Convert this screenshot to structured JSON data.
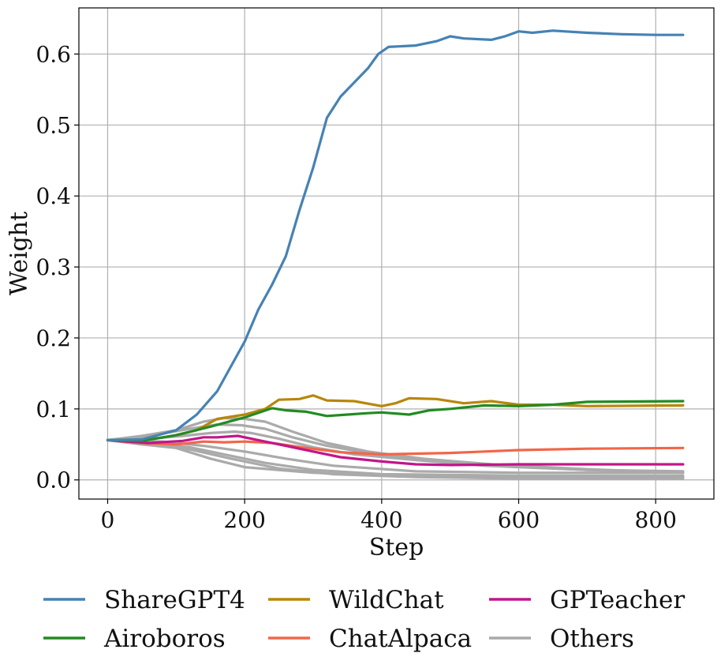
{
  "chart_data": {
    "type": "line",
    "xlabel": "Step",
    "ylabel": "Weight",
    "xlim": [
      -42,
      885
    ],
    "ylim": [
      -0.027,
      0.665
    ],
    "xticks": [
      0,
      200,
      400,
      600,
      800
    ],
    "yticks": [
      0.0,
      0.1,
      0.2,
      0.3,
      0.4,
      0.5,
      0.6
    ],
    "ytick_labels": [
      "0.0",
      "0.1",
      "0.2",
      "0.3",
      "0.4",
      "0.5",
      "0.6"
    ],
    "grid": true,
    "legend_position": "bottom",
    "series": [
      {
        "name": "Others",
        "color": "#aaaaaa",
        "points": [
          [
            0,
            0.056
          ],
          [
            50,
            0.05
          ],
          [
            100,
            0.045
          ],
          [
            150,
            0.03
          ],
          [
            200,
            0.018
          ],
          [
            300,
            0.01
          ],
          [
            400,
            0.006
          ],
          [
            600,
            0.004
          ],
          [
            840,
            0.004
          ]
        ]
      },
      {
        "name": "",
        "color": "#aaaaaa",
        "points": [
          [
            0,
            0.056
          ],
          [
            60,
            0.052
          ],
          [
            120,
            0.046
          ],
          [
            170,
            0.036
          ],
          [
            230,
            0.024
          ],
          [
            300,
            0.014
          ],
          [
            400,
            0.008
          ],
          [
            600,
            0.006
          ],
          [
            840,
            0.006
          ]
        ]
      },
      {
        "name": "",
        "color": "#aaaaaa",
        "points": [
          [
            0,
            0.056
          ],
          [
            80,
            0.054
          ],
          [
            140,
            0.048
          ],
          [
            200,
            0.04
          ],
          [
            260,
            0.03
          ],
          [
            330,
            0.02
          ],
          [
            450,
            0.012
          ],
          [
            600,
            0.01
          ],
          [
            840,
            0.01
          ]
        ]
      },
      {
        "name": "",
        "color": "#aaaaaa",
        "points": [
          [
            0,
            0.056
          ],
          [
            60,
            0.058
          ],
          [
            110,
            0.062
          ],
          [
            150,
            0.066
          ],
          [
            185,
            0.068
          ],
          [
            210,
            0.066
          ],
          [
            250,
            0.058
          ],
          [
            300,
            0.046
          ],
          [
            360,
            0.036
          ],
          [
            450,
            0.028
          ],
          [
            550,
            0.02
          ],
          [
            700,
            0.014
          ],
          [
            840,
            0.012
          ]
        ]
      },
      {
        "name": "",
        "color": "#aaaaaa",
        "points": [
          [
            0,
            0.056
          ],
          [
            60,
            0.062
          ],
          [
            120,
            0.072
          ],
          [
            160,
            0.078
          ],
          [
            195,
            0.077
          ],
          [
            230,
            0.072
          ],
          [
            270,
            0.06
          ],
          [
            320,
            0.048
          ],
          [
            380,
            0.038
          ],
          [
            460,
            0.028
          ],
          [
            560,
            0.02
          ],
          [
            700,
            0.014
          ],
          [
            840,
            0.01
          ]
        ]
      },
      {
        "name": "",
        "color": "#aaaaaa",
        "points": [
          [
            0,
            0.056
          ],
          [
            50,
            0.062
          ],
          [
            100,
            0.07
          ],
          [
            140,
            0.082
          ],
          [
            170,
            0.087
          ],
          [
            200,
            0.086
          ],
          [
            230,
            0.082
          ],
          [
            270,
            0.068
          ],
          [
            320,
            0.052
          ],
          [
            380,
            0.04
          ],
          [
            460,
            0.03
          ],
          [
            560,
            0.022
          ],
          [
            700,
            0.015
          ],
          [
            840,
            0.01
          ]
        ]
      },
      {
        "name": "",
        "color": "#aaaaaa",
        "points": [
          [
            0,
            0.056
          ],
          [
            60,
            0.05
          ],
          [
            120,
            0.043
          ],
          [
            180,
            0.03
          ],
          [
            250,
            0.016
          ],
          [
            330,
            0.008
          ],
          [
            450,
            0.004
          ],
          [
            600,
            0.002
          ],
          [
            840,
            0.002
          ]
        ]
      },
      {
        "name": "ChatAlpaca",
        "color": "#f26649",
        "points": [
          [
            0,
            0.056
          ],
          [
            50,
            0.052
          ],
          [
            100,
            0.05
          ],
          [
            140,
            0.054
          ],
          [
            170,
            0.053
          ],
          [
            200,
            0.054
          ],
          [
            240,
            0.052
          ],
          [
            290,
            0.045
          ],
          [
            340,
            0.039
          ],
          [
            400,
            0.036
          ],
          [
            450,
            0.037
          ],
          [
            500,
            0.038
          ],
          [
            550,
            0.04
          ],
          [
            600,
            0.042
          ],
          [
            700,
            0.044
          ],
          [
            840,
            0.045
          ]
        ]
      },
      {
        "name": "GPTeacher",
        "color": "#c2168a",
        "points": [
          [
            0,
            0.056
          ],
          [
            60,
            0.052
          ],
          [
            110,
            0.055
          ],
          [
            140,
            0.06
          ],
          [
            160,
            0.06
          ],
          [
            190,
            0.062
          ],
          [
            220,
            0.056
          ],
          [
            260,
            0.048
          ],
          [
            300,
            0.04
          ],
          [
            340,
            0.032
          ],
          [
            400,
            0.026
          ],
          [
            450,
            0.022
          ],
          [
            500,
            0.021
          ],
          [
            600,
            0.022
          ],
          [
            840,
            0.022
          ]
        ]
      },
      {
        "name": "WildChat",
        "color": "#b8860b",
        "points": [
          [
            0,
            0.056
          ],
          [
            50,
            0.055
          ],
          [
            100,
            0.063
          ],
          [
            130,
            0.07
          ],
          [
            160,
            0.086
          ],
          [
            200,
            0.092
          ],
          [
            230,
            0.1
          ],
          [
            250,
            0.113
          ],
          [
            280,
            0.114
          ],
          [
            300,
            0.119
          ],
          [
            320,
            0.112
          ],
          [
            360,
            0.111
          ],
          [
            400,
            0.104
          ],
          [
            420,
            0.108
          ],
          [
            440,
            0.115
          ],
          [
            480,
            0.114
          ],
          [
            520,
            0.108
          ],
          [
            560,
            0.111
          ],
          [
            600,
            0.106
          ],
          [
            650,
            0.106
          ],
          [
            700,
            0.104
          ],
          [
            840,
            0.105
          ]
        ]
      },
      {
        "name": "Airoboros",
        "color": "#228b22",
        "points": [
          [
            0,
            0.056
          ],
          [
            50,
            0.055
          ],
          [
            100,
            0.063
          ],
          [
            150,
            0.075
          ],
          [
            200,
            0.088
          ],
          [
            240,
            0.101
          ],
          [
            260,
            0.098
          ],
          [
            290,
            0.096
          ],
          [
            320,
            0.09
          ],
          [
            350,
            0.092
          ],
          [
            380,
            0.094
          ],
          [
            400,
            0.095
          ],
          [
            440,
            0.092
          ],
          [
            470,
            0.098
          ],
          [
            500,
            0.1
          ],
          [
            550,
            0.105
          ],
          [
            600,
            0.104
          ],
          [
            650,
            0.106
          ],
          [
            700,
            0.11
          ],
          [
            840,
            0.111
          ]
        ]
      },
      {
        "name": "ShareGPT4",
        "color": "#4682b4",
        "points": [
          [
            0,
            0.056
          ],
          [
            50,
            0.057
          ],
          [
            100,
            0.07
          ],
          [
            130,
            0.092
          ],
          [
            160,
            0.125
          ],
          [
            180,
            0.16
          ],
          [
            200,
            0.195
          ],
          [
            220,
            0.24
          ],
          [
            240,
            0.275
          ],
          [
            260,
            0.315
          ],
          [
            280,
            0.38
          ],
          [
            300,
            0.44
          ],
          [
            320,
            0.51
          ],
          [
            340,
            0.54
          ],
          [
            360,
            0.56
          ],
          [
            380,
            0.58
          ],
          [
            395,
            0.6
          ],
          [
            410,
            0.61
          ],
          [
            450,
            0.612
          ],
          [
            480,
            0.618
          ],
          [
            500,
            0.625
          ],
          [
            520,
            0.622
          ],
          [
            560,
            0.62
          ],
          [
            580,
            0.625
          ],
          [
            600,
            0.632
          ],
          [
            620,
            0.63
          ],
          [
            650,
            0.633
          ],
          [
            700,
            0.63
          ],
          [
            750,
            0.628
          ],
          [
            800,
            0.627
          ],
          [
            840,
            0.627
          ]
        ]
      }
    ],
    "legend": [
      {
        "label": "ShareGPT4",
        "color": "#4682b4"
      },
      {
        "label": "WildChat",
        "color": "#b8860b"
      },
      {
        "label": "GPTeacher",
        "color": "#c2168a"
      },
      {
        "label": "Airoboros",
        "color": "#228b22"
      },
      {
        "label": "ChatAlpaca",
        "color": "#f26649"
      },
      {
        "label": "Others",
        "color": "#aaaaaa"
      }
    ]
  }
}
